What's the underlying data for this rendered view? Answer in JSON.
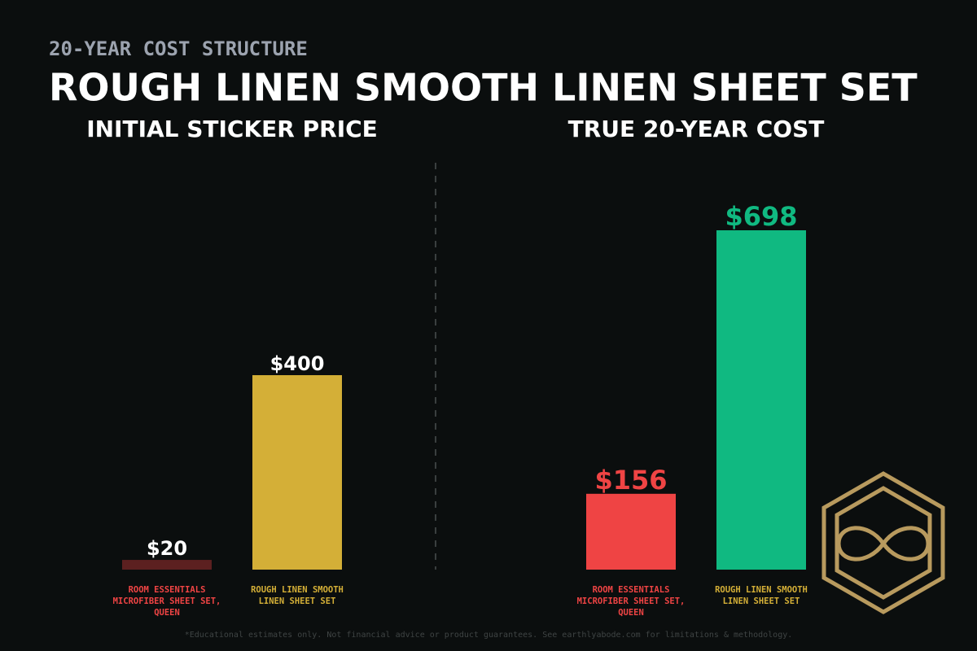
{
  "header": {
    "eyebrow": "20-YEAR COST STRUCTURE",
    "title": "ROUGH LINEN SMOOTH LINEN SHEET SET"
  },
  "chart_data": [
    {
      "type": "bar",
      "title": "INITIAL STICKER PRICE",
      "categories": [
        "ROOM ESSENTIALS MICROFIBER SHEET SET, QUEEN",
        "ROUGH LINEN SMOOTH LINEN SHEET SET"
      ],
      "values": [
        20,
        400
      ],
      "value_labels": [
        "$20",
        "$400"
      ],
      "colors": [
        "#5c2020",
        "#d4af37"
      ],
      "label_colors": [
        "#ef4444",
        "#d4af37"
      ],
      "value_label_color": "#ffffff"
    },
    {
      "type": "bar",
      "title": "TRUE 20-YEAR COST",
      "categories": [
        "ROOM ESSENTIALS MICROFIBER SHEET SET, QUEEN",
        "ROUGH LINEN SMOOTH LINEN SHEET SET"
      ],
      "values": [
        156,
        698
      ],
      "value_labels": [
        "$156",
        "$698"
      ],
      "colors": [
        "#ef4444",
        "#10b981"
      ],
      "label_colors": [
        "#ef4444",
        "#d4af37"
      ]
    }
  ],
  "footer": "*Educational estimates only. Not financial advice or product guarantees. See earthlyabode.com for limitations & methodology."
}
